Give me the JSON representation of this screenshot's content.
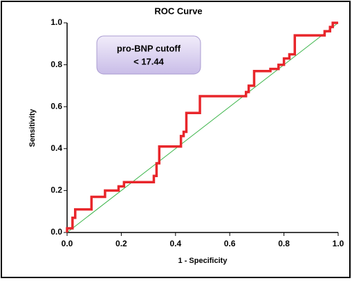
{
  "chart_data": {
    "type": "line",
    "title": "ROC Curve",
    "xlabel": "1 - Specificity",
    "ylabel": "Sensitivity",
    "annotation": [
      "pro-BNP cutoff",
      "< 17.44"
    ],
    "xlim": [
      0,
      1
    ],
    "ylim": [
      0,
      1
    ],
    "xticks": [
      {
        "value": 0,
        "label": "0.0"
      },
      0.2,
      0.4,
      0.6,
      0.8,
      {
        "value": 1,
        "label": "1.0"
      }
    ],
    "yticks": [
      {
        "value": 0,
        "label": "0.0"
      },
      0.2,
      0.4,
      0.6,
      0.8,
      {
        "value": 1,
        "label": "1.0"
      }
    ],
    "series": [
      {
        "color": "#e8262b",
        "x": [
          0.0,
          0.0,
          0.02,
          0.02,
          0.03,
          0.03,
          0.09,
          0.09,
          0.14,
          0.14,
          0.19,
          0.19,
          0.21,
          0.21,
          0.32,
          0.32,
          0.33,
          0.33,
          0.34,
          0.34,
          0.42,
          0.42,
          0.43,
          0.43,
          0.44,
          0.44,
          0.49,
          0.49,
          0.66,
          0.66,
          0.67,
          0.67,
          0.69,
          0.69,
          0.75,
          0.75,
          0.78,
          0.78,
          0.8,
          0.8,
          0.82,
          0.82,
          0.84,
          0.84,
          0.95,
          0.95,
          0.97,
          0.97,
          0.98,
          0.98,
          1.0
        ],
        "values": [
          0.0,
          0.02,
          0.02,
          0.07,
          0.07,
          0.11,
          0.11,
          0.17,
          0.17,
          0.2,
          0.2,
          0.22,
          0.22,
          0.24,
          0.24,
          0.27,
          0.27,
          0.33,
          0.33,
          0.41,
          0.41,
          0.46,
          0.46,
          0.48,
          0.48,
          0.57,
          0.57,
          0.65,
          0.65,
          0.67,
          0.67,
          0.7,
          0.7,
          0.77,
          0.77,
          0.78,
          0.78,
          0.8,
          0.8,
          0.83,
          0.83,
          0.85,
          0.85,
          0.94,
          0.94,
          0.96,
          0.96,
          0.98,
          0.98,
          1.0,
          1.0
        ]
      },
      {
        "color": "#3cb54a",
        "x": [
          0,
          1
        ],
        "values": [
          0,
          1
        ]
      }
    ]
  }
}
